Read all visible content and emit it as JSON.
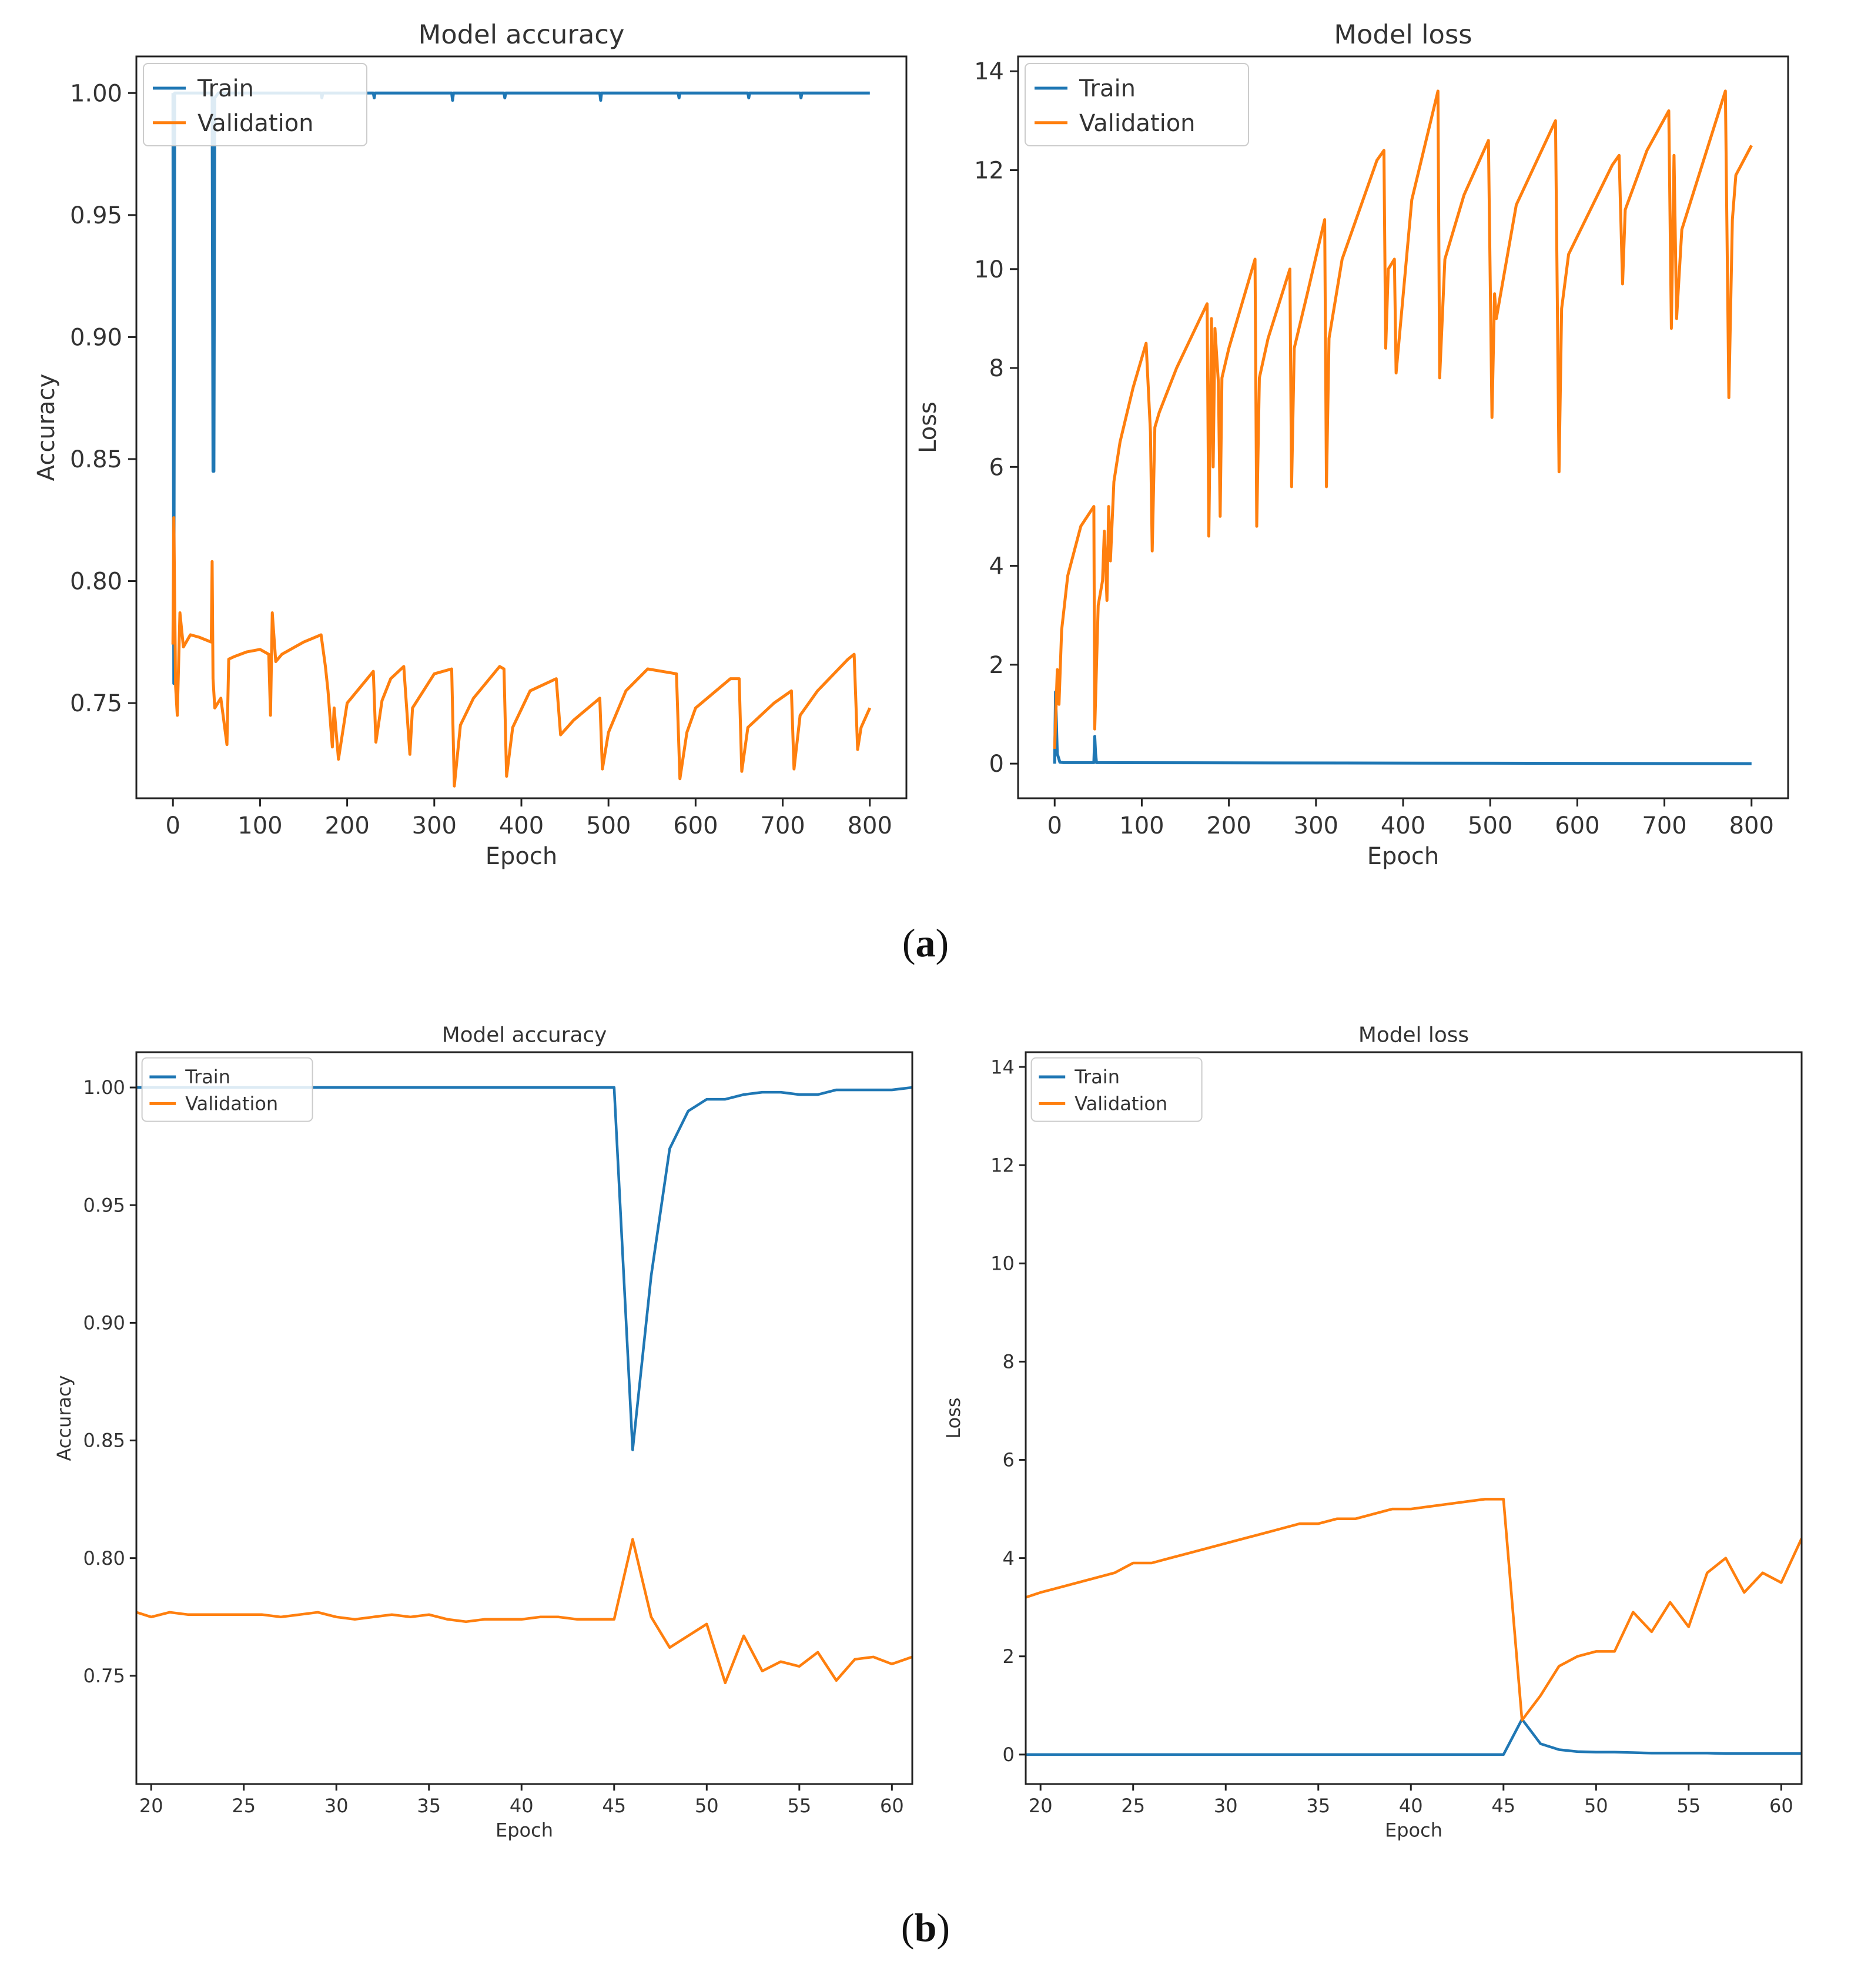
{
  "figure": {
    "caption_a": {
      "open": "(",
      "letter": "a",
      "close": ")"
    },
    "caption_b": {
      "open": "(",
      "letter": "b",
      "close": ")"
    }
  },
  "colors": {
    "train": "#1f77b4",
    "validation": "#ff7f0e",
    "axis": "#222222",
    "text": "#333333"
  },
  "chart_data": [
    {
      "id": "a-accuracy",
      "panel": "a",
      "type": "line",
      "title": "Model accuracy",
      "xlabel": "Epoch",
      "ylabel": "Accuracy",
      "xlim": [
        -42,
        842
      ],
      "ylim": [
        0.711,
        1.015
      ],
      "xticks": [
        0,
        100,
        200,
        300,
        400,
        500,
        600,
        700,
        800
      ],
      "xtick_labels": [
        "0",
        "100",
        "200",
        "300",
        "400",
        "500",
        "600",
        "700",
        "800"
      ],
      "yticks": [
        0.75,
        0.8,
        0.85,
        0.9,
        0.95,
        1.0
      ],
      "ytick_labels": [
        "0.75",
        "0.80",
        "0.85",
        "0.90",
        "0.95",
        "1.00"
      ],
      "legend": {
        "position": "top-left",
        "entries": [
          "Train",
          "Validation"
        ]
      },
      "series": [
        {
          "name": "Train",
          "x": [
            0,
            1,
            2,
            5,
            10,
            40,
            44,
            45,
            46,
            47,
            48,
            52,
            60,
            100,
            160,
            170,
            171,
            172,
            230,
            231,
            232,
            300,
            320,
            321,
            322,
            380,
            381,
            382,
            440,
            490,
            491,
            492,
            550,
            580,
            581,
            582,
            650,
            660,
            661,
            662,
            720,
            721,
            722,
            780,
            800
          ],
          "y": [
            1.0,
            0.758,
            1.0,
            1.0,
            1.0,
            1.0,
            1.0,
            1.0,
            0.845,
            0.845,
            0.998,
            1.0,
            1.0,
            1.0,
            1.0,
            1.0,
            0.998,
            1.0,
            1.0,
            0.998,
            1.0,
            1.0,
            1.0,
            0.997,
            1.0,
            1.0,
            0.998,
            1.0,
            1.0,
            1.0,
            0.997,
            1.0,
            1.0,
            1.0,
            0.998,
            1.0,
            1.0,
            1.0,
            0.998,
            1.0,
            1.0,
            0.998,
            1.0,
            1.0,
            1.0
          ]
        },
        {
          "name": "Validation",
          "x": [
            0,
            1,
            3,
            5,
            8,
            12,
            20,
            30,
            44,
            45,
            46,
            48,
            55,
            62,
            64,
            70,
            85,
            100,
            110,
            112,
            114,
            118,
            125,
            150,
            170,
            175,
            178,
            183,
            185,
            190,
            200,
            230,
            233,
            240,
            250,
            265,
            272,
            275,
            300,
            320,
            323,
            330,
            345,
            375,
            380,
            383,
            390,
            410,
            440,
            445,
            460,
            470,
            490,
            493,
            500,
            520,
            545,
            578,
            582,
            590,
            600,
            640,
            650,
            653,
            660,
            690,
            710,
            713,
            720,
            740,
            775,
            782,
            786,
            790,
            800
          ],
          "y": [
            0.774,
            0.826,
            0.757,
            0.745,
            0.787,
            0.773,
            0.778,
            0.777,
            0.775,
            0.808,
            0.76,
            0.748,
            0.752,
            0.733,
            0.768,
            0.769,
            0.771,
            0.772,
            0.77,
            0.745,
            0.787,
            0.767,
            0.77,
            0.775,
            0.778,
            0.765,
            0.755,
            0.732,
            0.748,
            0.727,
            0.75,
            0.763,
            0.734,
            0.751,
            0.76,
            0.765,
            0.729,
            0.748,
            0.762,
            0.764,
            0.716,
            0.741,
            0.752,
            0.765,
            0.764,
            0.72,
            0.74,
            0.755,
            0.76,
            0.737,
            0.743,
            0.746,
            0.752,
            0.723,
            0.738,
            0.755,
            0.764,
            0.762,
            0.719,
            0.738,
            0.748,
            0.76,
            0.76,
            0.722,
            0.74,
            0.75,
            0.755,
            0.723,
            0.745,
            0.755,
            0.768,
            0.77,
            0.731,
            0.74,
            0.748
          ]
        }
      ]
    },
    {
      "id": "a-loss",
      "panel": "a",
      "type": "line",
      "title": "Model loss",
      "xlabel": "Epoch",
      "ylabel": "Loss",
      "xlim": [
        -42,
        842
      ],
      "ylim": [
        -0.7,
        14.3
      ],
      "xticks": [
        0,
        100,
        200,
        300,
        400,
        500,
        600,
        700,
        800
      ],
      "xtick_labels": [
        "0",
        "100",
        "200",
        "300",
        "400",
        "500",
        "600",
        "700",
        "800"
      ],
      "yticks": [
        0,
        2,
        4,
        6,
        8,
        10,
        12,
        14
      ],
      "ytick_labels": [
        "0",
        "2",
        "4",
        "6",
        "8",
        "10",
        "12",
        "14"
      ],
      "legend": {
        "position": "top-left",
        "entries": [
          "Train",
          "Validation"
        ]
      },
      "series": [
        {
          "name": "Train",
          "x": [
            0,
            1,
            3,
            6,
            10,
            44,
            45,
            46,
            47,
            48,
            55,
            800
          ],
          "y": [
            0.0,
            1.45,
            0.2,
            0.03,
            0.02,
            0.02,
            0.02,
            0.55,
            0.2,
            0.02,
            0.02,
            0.0
          ]
        },
        {
          "name": "Validation",
          "x": [
            0,
            3,
            5,
            8,
            15,
            30,
            45,
            46,
            50,
            55,
            57,
            60,
            62,
            64,
            68,
            75,
            90,
            105,
            110,
            112,
            115,
            120,
            140,
            175,
            177,
            180,
            182,
            184,
            188,
            190,
            192,
            200,
            230,
            232,
            235,
            245,
            270,
            272,
            275,
            290,
            310,
            312,
            315,
            330,
            370,
            378,
            380,
            383,
            390,
            392,
            410,
            440,
            442,
            448,
            470,
            498,
            502,
            505,
            507,
            530,
            575,
            579,
            582,
            590,
            640,
            648,
            652,
            655,
            680,
            705,
            708,
            711,
            714,
            720,
            770,
            774,
            778,
            782,
            800
          ],
          "y": [
            0.3,
            1.9,
            1.2,
            2.7,
            3.8,
            4.8,
            5.2,
            0.7,
            3.2,
            3.7,
            4.7,
            3.3,
            5.2,
            4.1,
            5.7,
            6.5,
            7.6,
            8.5,
            6.7,
            4.3,
            6.8,
            7.1,
            8.0,
            9.3,
            4.6,
            9.0,
            6.0,
            8.8,
            7.7,
            5.0,
            7.8,
            8.4,
            10.2,
            4.8,
            7.8,
            8.6,
            10.0,
            5.6,
            8.4,
            9.5,
            11.0,
            5.6,
            8.6,
            10.2,
            12.2,
            12.4,
            8.4,
            10.0,
            10.2,
            7.9,
            11.4,
            13.6,
            7.8,
            10.2,
            11.5,
            12.6,
            7.0,
            9.5,
            9.0,
            11.3,
            13.0,
            5.9,
            9.2,
            10.3,
            12.1,
            12.3,
            9.7,
            11.2,
            12.4,
            13.2,
            8.8,
            12.3,
            9.0,
            10.8,
            13.6,
            7.4,
            11.0,
            11.9,
            12.5
          ]
        }
      ]
    },
    {
      "id": "b-accuracy",
      "panel": "b",
      "type": "line",
      "title": "Model accuracy",
      "xlabel": "Epoch",
      "ylabel": "Accuracy",
      "xlim": [
        19.2,
        61.1
      ],
      "ylim": [
        0.704,
        1.015
      ],
      "xticks": [
        20,
        25,
        30,
        35,
        40,
        45,
        50,
        55,
        60
      ],
      "xtick_labels": [
        "20",
        "25",
        "30",
        "35",
        "40",
        "45",
        "50",
        "55",
        "60"
      ],
      "yticks": [
        0.75,
        0.8,
        0.85,
        0.9,
        0.95,
        1.0
      ],
      "ytick_labels": [
        "0.75",
        "0.80",
        "0.85",
        "0.90",
        "0.95",
        "1.00"
      ],
      "legend": {
        "position": "top-left",
        "entries": [
          "Train",
          "Validation"
        ]
      },
      "series": [
        {
          "name": "Train",
          "x": [
            19.2,
            45,
            46,
            47,
            48,
            49,
            50,
            51,
            52,
            53,
            54,
            55,
            56,
            57,
            58,
            59,
            60,
            61.1
          ],
          "y": [
            1.0,
            1.0,
            0.846,
            0.92,
            0.974,
            0.99,
            0.995,
            0.995,
            0.997,
            0.998,
            0.998,
            0.997,
            0.997,
            0.999,
            0.999,
            0.999,
            0.999,
            1.0
          ]
        },
        {
          "name": "Validation",
          "x": [
            19.2,
            20,
            21,
            22,
            23,
            24,
            25,
            26,
            27,
            28,
            29,
            30,
            31,
            32,
            33,
            34,
            35,
            36,
            37,
            38,
            39,
            40,
            41,
            42,
            43,
            44,
            45,
            46,
            47,
            48,
            49,
            50,
            51,
            52,
            53,
            54,
            55,
            56,
            57,
            58,
            59,
            60,
            61.1
          ],
          "y": [
            0.777,
            0.775,
            0.777,
            0.776,
            0.776,
            0.776,
            0.776,
            0.776,
            0.775,
            0.776,
            0.777,
            0.775,
            0.774,
            0.775,
            0.776,
            0.775,
            0.776,
            0.774,
            0.773,
            0.774,
            0.774,
            0.774,
            0.775,
            0.775,
            0.774,
            0.774,
            0.774,
            0.808,
            0.775,
            0.762,
            0.767,
            0.772,
            0.747,
            0.767,
            0.752,
            0.756,
            0.754,
            0.76,
            0.748,
            0.757,
            0.758,
            0.755,
            0.758
          ]
        }
      ]
    },
    {
      "id": "b-loss",
      "panel": "b",
      "type": "line",
      "title": "Model loss",
      "xlabel": "Epoch",
      "ylabel": "Loss",
      "xlim": [
        19.2,
        61.1
      ],
      "ylim": [
        -0.6,
        14.3
      ],
      "xticks": [
        20,
        25,
        30,
        35,
        40,
        45,
        50,
        55,
        60
      ],
      "xtick_labels": [
        "20",
        "25",
        "30",
        "35",
        "40",
        "45",
        "50",
        "55",
        "60"
      ],
      "yticks": [
        0,
        2,
        4,
        6,
        8,
        10,
        12,
        14
      ],
      "ytick_labels": [
        "0",
        "2",
        "4",
        "6",
        "8",
        "10",
        "12",
        "14"
      ],
      "legend": {
        "position": "top-left",
        "entries": [
          "Train",
          "Validation"
        ]
      },
      "series": [
        {
          "name": "Train",
          "x": [
            19.2,
            45,
            46,
            47,
            48,
            49,
            50,
            51,
            52,
            53,
            54,
            55,
            56,
            57,
            58,
            59,
            60,
            61.1
          ],
          "y": [
            0.0,
            0.0,
            0.72,
            0.22,
            0.1,
            0.06,
            0.05,
            0.05,
            0.04,
            0.03,
            0.03,
            0.03,
            0.03,
            0.02,
            0.02,
            0.02,
            0.02,
            0.02
          ]
        },
        {
          "name": "Validation",
          "x": [
            19.2,
            20,
            21,
            22,
            23,
            24,
            25,
            26,
            27,
            28,
            29,
            30,
            31,
            32,
            33,
            34,
            35,
            36,
            37,
            38,
            39,
            40,
            41,
            42,
            43,
            44,
            45,
            46,
            47,
            48,
            49,
            50,
            51,
            52,
            53,
            54,
            55,
            56,
            57,
            58,
            59,
            60,
            61.1
          ],
          "y": [
            3.2,
            3.3,
            3.4,
            3.5,
            3.6,
            3.7,
            3.9,
            3.9,
            4.0,
            4.1,
            4.2,
            4.3,
            4.4,
            4.5,
            4.6,
            4.7,
            4.7,
            4.8,
            4.8,
            4.9,
            5.0,
            5.0,
            5.05,
            5.1,
            5.15,
            5.2,
            5.2,
            0.7,
            1.2,
            1.8,
            2.0,
            2.1,
            2.1,
            2.9,
            2.5,
            3.1,
            2.6,
            3.7,
            4.0,
            3.3,
            3.7,
            3.5,
            4.4
          ]
        }
      ]
    }
  ]
}
